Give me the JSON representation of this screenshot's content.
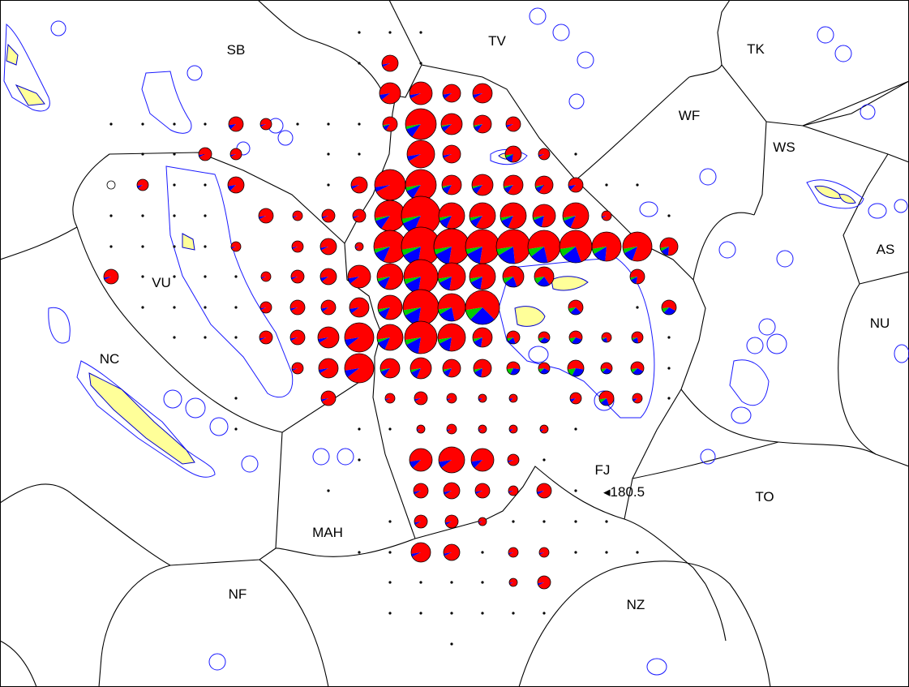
{
  "colors": {
    "tuna_red": "#ff0000",
    "tuna_blue": "#0000ff",
    "tuna_green": "#00cc00",
    "land": "#ffff99",
    "reef_line": "#1a1aff",
    "boundary": "#000000"
  },
  "zone_labels": [
    {
      "code": "SB"
    },
    {
      "code": "TV"
    },
    {
      "code": "TK"
    },
    {
      "code": "WF"
    },
    {
      "code": "WS"
    },
    {
      "code": "AS"
    },
    {
      "code": "NU"
    },
    {
      "code": "VU"
    },
    {
      "code": "NC"
    },
    {
      "code": "FJ"
    },
    {
      "code": "TO"
    },
    {
      "code": "MAH"
    },
    {
      "code": "NF"
    },
    {
      "code": "NZ"
    }
  ],
  "annotation": {
    "text": "◂180.5"
  },
  "grid": {
    "lon_start": 155,
    "lat_start": -5,
    "step": 1,
    "cells": [
      [
        0,
        0,
        0,
        0,
        0,
        0,
        0,
        0,
        0,
        0,
        0,
        0,
        0,
        0,
        0,
        0,
        0,
        0,
        0,
        0,
        0,
        0,
        0,
        0,
        0
      ],
      [
        0,
        0,
        0,
        0,
        0,
        0,
        0,
        0,
        0,
        0,
        0,
        0,
        0,
        0,
        0,
        0,
        0,
        0,
        0,
        0,
        0,
        0,
        0,
        0,
        0
      ],
      [
        0,
        0,
        0,
        0,
        0,
        0,
        0,
        0,
        0,
        0,
        0,
        0,
        0,
        0,
        0,
        0,
        0,
        0,
        0,
        0,
        0,
        0,
        0,
        0,
        0
      ],
      [
        0,
        0,
        0,
        0,
        0,
        0,
        0,
        0,
        0,
        0,
        0,
        0,
        0,
        0,
        0,
        0,
        0,
        0,
        0,
        0,
        0,
        0,
        0,
        0,
        0
      ],
      [
        0,
        0,
        0,
        0,
        0,
        0,
        0,
        0,
        0,
        0,
        0,
        0,
        0,
        0,
        0,
        0,
        0,
        0,
        0,
        0,
        0,
        0,
        0,
        0,
        0
      ]
    ]
  }
}
